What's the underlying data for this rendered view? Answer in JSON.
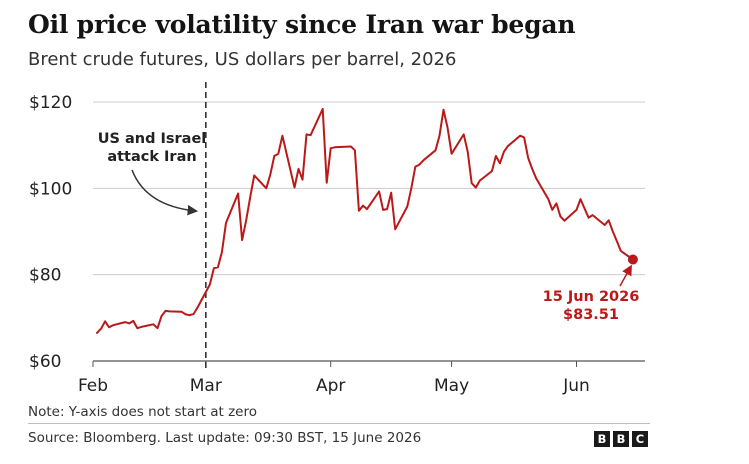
{
  "title": "Oil price volatility since Iran war began",
  "subtitle": "Brent crude futures, US dollars per barrel, 2026",
  "note": "Note: Y-axis does not start at zero",
  "source": "Source: Bloomberg. Last update: 09:30 BST, 15 June 2026",
  "logo_letters": [
    "B",
    "B",
    "C"
  ],
  "colors": {
    "line": "#bb1919",
    "grid": "#cccccc",
    "event": "#333333"
  },
  "chart_data": {
    "type": "line",
    "series": [
      {
        "values": [
          [
            "2026-02-02",
            66.5
          ],
          [
            "2026-02-03",
            67.5
          ],
          [
            "2026-02-04",
            69.2
          ],
          [
            "2026-02-05",
            67.8
          ],
          [
            "2026-02-06",
            68.3
          ],
          [
            "2026-02-09",
            69.0
          ],
          [
            "2026-02-10",
            68.7
          ],
          [
            "2026-02-11",
            69.3
          ],
          [
            "2026-02-12",
            67.6
          ],
          [
            "2026-02-13",
            67.9
          ],
          [
            "2026-02-16",
            68.5
          ],
          [
            "2026-02-17",
            67.6
          ],
          [
            "2026-02-18",
            70.4
          ],
          [
            "2026-02-19",
            71.6
          ],
          [
            "2026-02-20",
            71.5
          ],
          [
            "2026-02-23",
            71.4
          ],
          [
            "2026-02-24",
            70.8
          ],
          [
            "2026-02-25",
            70.6
          ],
          [
            "2026-02-26",
            70.9
          ],
          [
            "2026-02-27",
            72.5
          ],
          [
            "2026-03-02",
            77.7
          ],
          [
            "2026-03-03",
            81.5
          ],
          [
            "2026-03-04",
            81.7
          ],
          [
            "2026-03-05",
            85.2
          ],
          [
            "2026-03-06",
            92.0
          ],
          [
            "2026-03-09",
            98.8
          ],
          [
            "2026-03-10",
            88.0
          ],
          [
            "2026-03-11",
            92.5
          ],
          [
            "2026-03-12",
            97.8
          ],
          [
            "2026-03-13",
            103.0
          ],
          [
            "2026-03-16",
            100.0
          ],
          [
            "2026-03-17",
            103.2
          ],
          [
            "2026-03-18",
            107.5
          ],
          [
            "2026-03-19",
            108.0
          ],
          [
            "2026-03-20",
            112.2
          ],
          [
            "2026-03-23",
            100.2
          ],
          [
            "2026-03-24",
            104.5
          ],
          [
            "2026-03-25",
            102.0
          ],
          [
            "2026-03-26",
            112.5
          ],
          [
            "2026-03-27",
            112.3
          ],
          [
            "2026-03-30",
            118.4
          ],
          [
            "2026-03-31",
            101.3
          ],
          [
            "2026-04-01",
            109.3
          ],
          [
            "2026-04-02",
            109.5
          ],
          [
            "2026-04-06",
            109.7
          ],
          [
            "2026-04-07",
            108.8
          ],
          [
            "2026-04-08",
            94.8
          ],
          [
            "2026-04-09",
            96.0
          ],
          [
            "2026-04-10",
            95.2
          ],
          [
            "2026-04-13",
            99.3
          ],
          [
            "2026-04-14",
            95.0
          ],
          [
            "2026-04-15",
            95.2
          ],
          [
            "2026-04-16",
            99.0
          ],
          [
            "2026-04-17",
            90.5
          ],
          [
            "2026-04-20",
            95.8
          ],
          [
            "2026-04-21",
            100.0
          ],
          [
            "2026-04-22",
            105.0
          ],
          [
            "2026-04-23",
            105.5
          ],
          [
            "2026-04-24",
            106.5
          ],
          [
            "2026-04-27",
            108.8
          ],
          [
            "2026-04-28",
            112.2
          ],
          [
            "2026-04-29",
            118.2
          ],
          [
            "2026-04-30",
            114.0
          ],
          [
            "2026-05-01",
            108.0
          ],
          [
            "2026-05-04",
            112.5
          ],
          [
            "2026-05-05",
            108.5
          ],
          [
            "2026-05-06",
            101.2
          ],
          [
            "2026-05-07",
            100.2
          ],
          [
            "2026-05-08",
            101.8
          ],
          [
            "2026-05-11",
            104.0
          ],
          [
            "2026-05-12",
            107.5
          ],
          [
            "2026-05-13",
            105.8
          ],
          [
            "2026-05-14",
            108.5
          ],
          [
            "2026-05-15",
            109.8
          ],
          [
            "2026-05-18",
            112.2
          ],
          [
            "2026-05-19",
            111.8
          ],
          [
            "2026-05-20",
            107.0
          ],
          [
            "2026-05-21",
            104.5
          ],
          [
            "2026-05-22",
            102.3
          ],
          [
            "2026-05-25",
            97.5
          ],
          [
            "2026-05-26",
            95.0
          ],
          [
            "2026-05-27",
            96.5
          ],
          [
            "2026-05-28",
            93.5
          ],
          [
            "2026-05-29",
            92.5
          ],
          [
            "2026-06-01",
            95.0
          ],
          [
            "2026-06-02",
            97.5
          ],
          [
            "2026-06-03",
            95.3
          ],
          [
            "2026-06-04",
            93.2
          ],
          [
            "2026-06-05",
            93.8
          ],
          [
            "2026-06-08",
            91.5
          ],
          [
            "2026-06-09",
            92.6
          ],
          [
            "2026-06-10",
            90.0
          ],
          [
            "2026-06-11",
            87.8
          ],
          [
            "2026-06-12",
            85.5
          ],
          [
            "2026-06-15",
            83.51
          ]
        ]
      }
    ],
    "x_ticks": [
      {
        "date": "2026-02-01",
        "label": "Feb"
      },
      {
        "date": "2026-03-01",
        "label": "Mar"
      },
      {
        "date": "2026-04-01",
        "label": "Apr"
      },
      {
        "date": "2026-05-01",
        "label": "May"
      },
      {
        "date": "2026-06-01",
        "label": "Jun"
      }
    ],
    "y_ticks": [
      {
        "value": 60,
        "label": "$60"
      },
      {
        "value": 80,
        "label": "$80"
      },
      {
        "value": 100,
        "label": "$100"
      },
      {
        "value": 120,
        "label": "$120"
      }
    ],
    "xlim": [
      "2026-02-01",
      "2026-06-18"
    ],
    "ylim": [
      60,
      120
    ],
    "grid": true,
    "annotations": {
      "event": {
        "date": "2026-03-01",
        "text_lines": [
          "US and Israel",
          "attack Iran"
        ]
      },
      "last_point": {
        "date": "2026-06-15",
        "value": 83.51,
        "text_lines": [
          "15 Jun 2026",
          "$83.51"
        ]
      }
    }
  }
}
